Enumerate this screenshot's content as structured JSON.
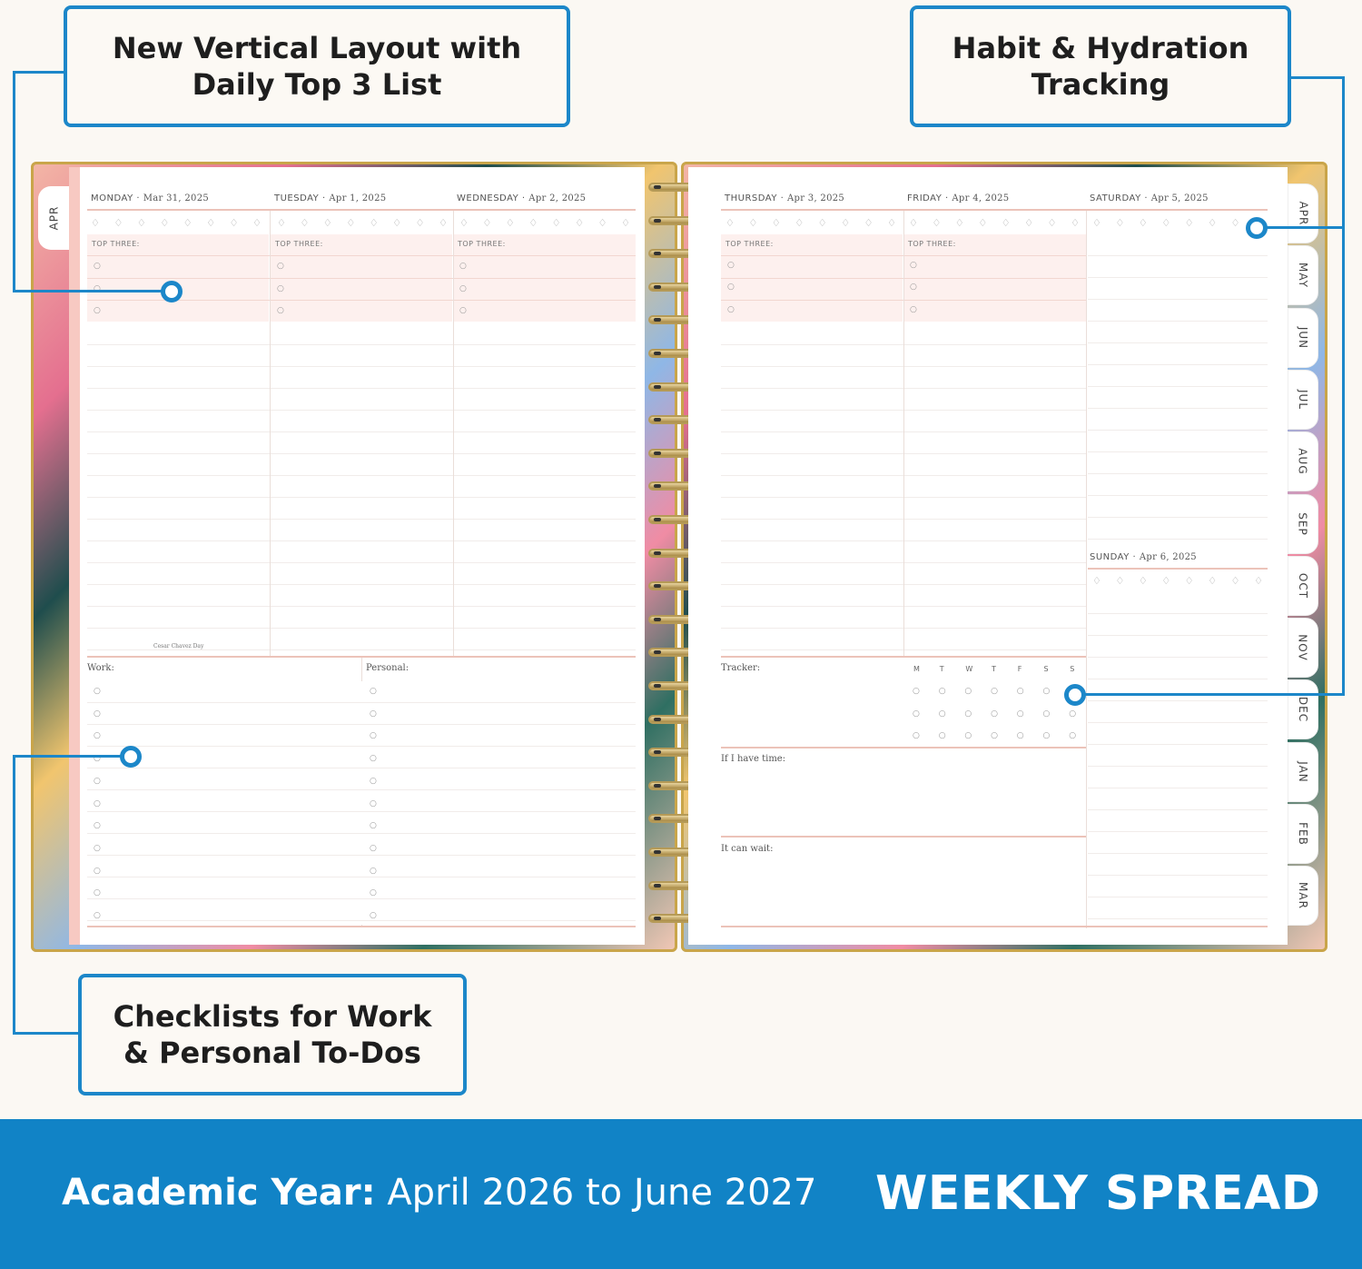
{
  "callouts": {
    "vertical_layout": "New Vertical Layout with\nDaily Top 3 List",
    "habit_hydration": "Habit & Hydration\nTracking",
    "checklists": "Checklists for Work\n& Personal To-Dos"
  },
  "left_page": {
    "days": [
      {
        "name": "MONDAY",
        "date": "Mar 31, 2025"
      },
      {
        "name": "TUESDAY",
        "date": "Apr 1, 2025"
      },
      {
        "name": "WEDNESDAY",
        "date": "Apr 2, 2025"
      }
    ],
    "top_three_label": "TOP THREE:",
    "holiday": "Cesar Chavez Day",
    "work_label": "Work:",
    "personal_label": "Personal:",
    "tab": "APR"
  },
  "right_page": {
    "days": [
      {
        "name": "THURSDAY",
        "date": "Apr 3, 2025"
      },
      {
        "name": "FRIDAY",
        "date": "Apr 4, 2025"
      },
      {
        "name": "SATURDAY",
        "date": "Apr 5, 2025"
      }
    ],
    "sunday": {
      "name": "SUNDAY",
      "date": "Apr 6, 2025"
    },
    "top_three_label": "TOP THREE:",
    "tracker_label": "Tracker:",
    "tracker_days": [
      "M",
      "T",
      "W",
      "T",
      "F",
      "S",
      "S"
    ],
    "if_time_label": "If I have time:",
    "can_wait_label": "It can wait:"
  },
  "month_tabs": [
    "APR",
    "MAY",
    "JUN",
    "JUL",
    "AUG",
    "SEP",
    "OCT",
    "NOV",
    "DEC",
    "JAN",
    "FEB",
    "MAR"
  ],
  "banner": {
    "academic_label": "Academic Year:",
    "academic_range": "April 2026 to June 2027",
    "title": "WEEKLY SPREAD"
  },
  "colors": {
    "accent": "#1c87c9",
    "banner": "#1183c6",
    "pink_rule": "#ecc3b9"
  },
  "icons": {
    "drop": "water-drop-icon",
    "bullet": "circle-bullet-icon"
  }
}
